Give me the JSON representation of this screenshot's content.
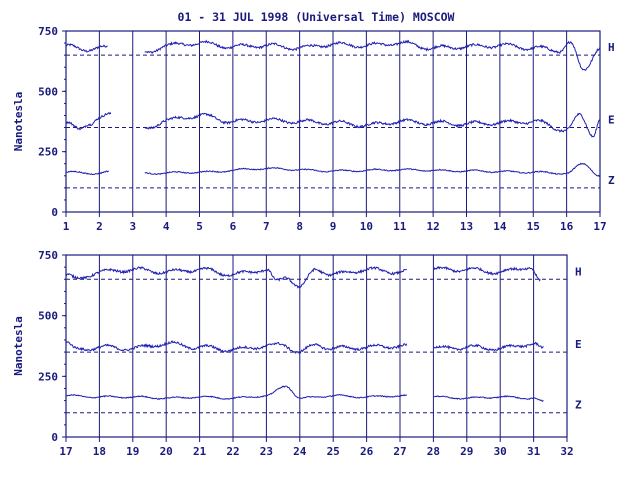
{
  "title": "01 - 31 JUL 1998 (Universal Time) MOSCOW",
  "colors": {
    "ink": "#1a1a7e",
    "trace": "#1f1fb0",
    "background": "#ffffff"
  },
  "chart_data": [
    {
      "type": "line",
      "panel": "top",
      "ylabel": "Nanotesla",
      "xlim": [
        1,
        17
      ],
      "ylim": [
        0,
        750
      ],
      "yticks": [
        "0",
        "250",
        "500",
        "750"
      ],
      "xticks": [
        "1",
        "2",
        "3",
        "4",
        "5",
        "6",
        "7",
        "8",
        "9",
        "10",
        "11",
        "12",
        "13",
        "14",
        "15",
        "16",
        "17"
      ],
      "day_lines": [
        2,
        3,
        4,
        5,
        6,
        7,
        8,
        9,
        10,
        11,
        12,
        13,
        14,
        15,
        16
      ],
      "baselines": [
        {
          "label": "H",
          "value": 650
        },
        {
          "label": "E",
          "value": 350
        },
        {
          "label": "Z",
          "value": 100
        }
      ],
      "series": [
        {
          "name": "H",
          "x": [
            1.0,
            1.5,
            2.0,
            2.2,
            3.4,
            4.0,
            5.0,
            6.0,
            7.0,
            8.0,
            9.0,
            10.0,
            11.0,
            12.0,
            13.0,
            14.0,
            15.0,
            15.8,
            16.1,
            16.5,
            17.0
          ],
          "y": [
            690,
            670,
            685,
            680,
            660,
            690,
            700,
            685,
            690,
            680,
            695,
            690,
            700,
            680,
            685,
            690,
            680,
            670,
            700,
            590,
            680
          ],
          "gaps": [
            [
              2.25,
              3.35
            ]
          ]
        },
        {
          "name": "E",
          "x": [
            1.0,
            1.4,
            1.7,
            2.0,
            2.3,
            3.4,
            4.0,
            5.0,
            6.0,
            7.0,
            8.0,
            9.0,
            10.0,
            11.0,
            12.0,
            13.0,
            14.0,
            15.0,
            16.0,
            16.4,
            16.8,
            17.0
          ],
          "y": [
            370,
            340,
            370,
            390,
            400,
            345,
            380,
            400,
            375,
            380,
            375,
            370,
            360,
            375,
            370,
            365,
            370,
            375,
            340,
            400,
            320,
            385
          ],
          "gaps": [
            [
              2.35,
              3.35
            ]
          ]
        },
        {
          "name": "Z",
          "x": [
            1.0,
            2.0,
            2.25,
            3.4,
            5.0,
            7.0,
            9.0,
            11.0,
            13.0,
            15.0,
            16.0,
            16.5,
            17.0
          ],
          "y": [
            165,
            160,
            165,
            160,
            165,
            180,
            170,
            175,
            170,
            165,
            160,
            200,
            150
          ],
          "gaps": [
            [
              2.3,
              3.35
            ]
          ]
        }
      ]
    },
    {
      "type": "line",
      "panel": "bottom",
      "ylabel": "Nanotesla",
      "xlim": [
        17,
        32
      ],
      "ylim": [
        0,
        750
      ],
      "yticks": [
        "0",
        "250",
        "500",
        "750"
      ],
      "xticks": [
        "17",
        "18",
        "19",
        "20",
        "21",
        "22",
        "23",
        "24",
        "25",
        "26",
        "27",
        "28",
        "29",
        "30",
        "31",
        "32"
      ],
      "day_lines": [
        18,
        19,
        20,
        21,
        22,
        23,
        24,
        25,
        26,
        27,
        28,
        29,
        30,
        31
      ],
      "baselines": [
        {
          "label": "H",
          "value": 650
        },
        {
          "label": "E",
          "value": 350
        },
        {
          "label": "Z",
          "value": 100
        }
      ],
      "series": [
        {
          "name": "H",
          "x": [
            17.0,
            17.3,
            18.0,
            19.0,
            20.0,
            21.0,
            22.0,
            23.0,
            23.3,
            23.6,
            24.0,
            24.5,
            25.0,
            26.0,
            27.0,
            28.0,
            29.0,
            30.0,
            30.9,
            31.2
          ],
          "y": [
            670,
            650,
            680,
            690,
            680,
            690,
            670,
            690,
            640,
            660,
            620,
            690,
            670,
            690,
            680,
            690,
            690,
            680,
            700,
            640
          ],
          "gaps": [
            [
              27.2,
              28.0
            ]
          ]
        },
        {
          "name": "E",
          "x": [
            17.0,
            17.3,
            18.0,
            19.0,
            20.0,
            21.0,
            22.0,
            23.0,
            23.5,
            24.0,
            24.5,
            25.0,
            26.0,
            27.0,
            28.0,
            29.0,
            30.0,
            31.0,
            31.3
          ],
          "y": [
            390,
            360,
            370,
            365,
            385,
            370,
            360,
            375,
            380,
            350,
            380,
            365,
            370,
            375,
            365,
            370,
            365,
            385,
            360
          ],
          "gaps": [
            [
              27.2,
              28.0
            ]
          ]
        },
        {
          "name": "Z",
          "x": [
            17.0,
            18.0,
            19.0,
            20.0,
            21.0,
            22.0,
            23.0,
            23.6,
            24.0,
            25.0,
            26.0,
            27.0,
            28.0,
            29.0,
            30.0,
            31.0,
            31.3
          ],
          "y": [
            170,
            165,
            165,
            160,
            165,
            160,
            170,
            210,
            160,
            170,
            165,
            170,
            165,
            160,
            165,
            160,
            145
          ],
          "gaps": [
            [
              27.2,
              28.0
            ]
          ]
        }
      ]
    }
  ]
}
